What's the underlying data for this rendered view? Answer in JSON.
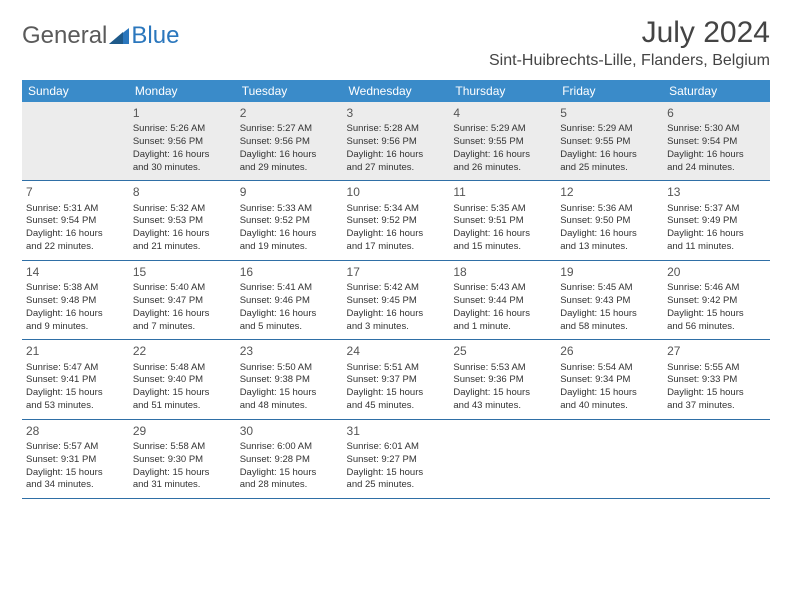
{
  "logo": {
    "general": "General",
    "blue": "Blue"
  },
  "header": {
    "title": "July 2024",
    "location": "Sint-Huibrechts-Lille, Flanders, Belgium"
  },
  "colors": {
    "header_bg": "#3a8bc9",
    "header_text": "#ffffff",
    "row_divider": "#2f6fa6",
    "first_row_bg": "#ececec",
    "text": "#333333",
    "logo_general": "#5a5a5a",
    "logo_blue": "#2b77bd"
  },
  "weekdays": [
    "Sunday",
    "Monday",
    "Tuesday",
    "Wednesday",
    "Thursday",
    "Friday",
    "Saturday"
  ],
  "weeks": [
    [
      null,
      {
        "n": "1",
        "sr": "Sunrise: 5:26 AM",
        "ss": "Sunset: 9:56 PM",
        "d1": "Daylight: 16 hours",
        "d2": "and 30 minutes."
      },
      {
        "n": "2",
        "sr": "Sunrise: 5:27 AM",
        "ss": "Sunset: 9:56 PM",
        "d1": "Daylight: 16 hours",
        "d2": "and 29 minutes."
      },
      {
        "n": "3",
        "sr": "Sunrise: 5:28 AM",
        "ss": "Sunset: 9:56 PM",
        "d1": "Daylight: 16 hours",
        "d2": "and 27 minutes."
      },
      {
        "n": "4",
        "sr": "Sunrise: 5:29 AM",
        "ss": "Sunset: 9:55 PM",
        "d1": "Daylight: 16 hours",
        "d2": "and 26 minutes."
      },
      {
        "n": "5",
        "sr": "Sunrise: 5:29 AM",
        "ss": "Sunset: 9:55 PM",
        "d1": "Daylight: 16 hours",
        "d2": "and 25 minutes."
      },
      {
        "n": "6",
        "sr": "Sunrise: 5:30 AM",
        "ss": "Sunset: 9:54 PM",
        "d1": "Daylight: 16 hours",
        "d2": "and 24 minutes."
      }
    ],
    [
      {
        "n": "7",
        "sr": "Sunrise: 5:31 AM",
        "ss": "Sunset: 9:54 PM",
        "d1": "Daylight: 16 hours",
        "d2": "and 22 minutes."
      },
      {
        "n": "8",
        "sr": "Sunrise: 5:32 AM",
        "ss": "Sunset: 9:53 PM",
        "d1": "Daylight: 16 hours",
        "d2": "and 21 minutes."
      },
      {
        "n": "9",
        "sr": "Sunrise: 5:33 AM",
        "ss": "Sunset: 9:52 PM",
        "d1": "Daylight: 16 hours",
        "d2": "and 19 minutes."
      },
      {
        "n": "10",
        "sr": "Sunrise: 5:34 AM",
        "ss": "Sunset: 9:52 PM",
        "d1": "Daylight: 16 hours",
        "d2": "and 17 minutes."
      },
      {
        "n": "11",
        "sr": "Sunrise: 5:35 AM",
        "ss": "Sunset: 9:51 PM",
        "d1": "Daylight: 16 hours",
        "d2": "and 15 minutes."
      },
      {
        "n": "12",
        "sr": "Sunrise: 5:36 AM",
        "ss": "Sunset: 9:50 PM",
        "d1": "Daylight: 16 hours",
        "d2": "and 13 minutes."
      },
      {
        "n": "13",
        "sr": "Sunrise: 5:37 AM",
        "ss": "Sunset: 9:49 PM",
        "d1": "Daylight: 16 hours",
        "d2": "and 11 minutes."
      }
    ],
    [
      {
        "n": "14",
        "sr": "Sunrise: 5:38 AM",
        "ss": "Sunset: 9:48 PM",
        "d1": "Daylight: 16 hours",
        "d2": "and 9 minutes."
      },
      {
        "n": "15",
        "sr": "Sunrise: 5:40 AM",
        "ss": "Sunset: 9:47 PM",
        "d1": "Daylight: 16 hours",
        "d2": "and 7 minutes."
      },
      {
        "n": "16",
        "sr": "Sunrise: 5:41 AM",
        "ss": "Sunset: 9:46 PM",
        "d1": "Daylight: 16 hours",
        "d2": "and 5 minutes."
      },
      {
        "n": "17",
        "sr": "Sunrise: 5:42 AM",
        "ss": "Sunset: 9:45 PM",
        "d1": "Daylight: 16 hours",
        "d2": "and 3 minutes."
      },
      {
        "n": "18",
        "sr": "Sunrise: 5:43 AM",
        "ss": "Sunset: 9:44 PM",
        "d1": "Daylight: 16 hours",
        "d2": "and 1 minute."
      },
      {
        "n": "19",
        "sr": "Sunrise: 5:45 AM",
        "ss": "Sunset: 9:43 PM",
        "d1": "Daylight: 15 hours",
        "d2": "and 58 minutes."
      },
      {
        "n": "20",
        "sr": "Sunrise: 5:46 AM",
        "ss": "Sunset: 9:42 PM",
        "d1": "Daylight: 15 hours",
        "d2": "and 56 minutes."
      }
    ],
    [
      {
        "n": "21",
        "sr": "Sunrise: 5:47 AM",
        "ss": "Sunset: 9:41 PM",
        "d1": "Daylight: 15 hours",
        "d2": "and 53 minutes."
      },
      {
        "n": "22",
        "sr": "Sunrise: 5:48 AM",
        "ss": "Sunset: 9:40 PM",
        "d1": "Daylight: 15 hours",
        "d2": "and 51 minutes."
      },
      {
        "n": "23",
        "sr": "Sunrise: 5:50 AM",
        "ss": "Sunset: 9:38 PM",
        "d1": "Daylight: 15 hours",
        "d2": "and 48 minutes."
      },
      {
        "n": "24",
        "sr": "Sunrise: 5:51 AM",
        "ss": "Sunset: 9:37 PM",
        "d1": "Daylight: 15 hours",
        "d2": "and 45 minutes."
      },
      {
        "n": "25",
        "sr": "Sunrise: 5:53 AM",
        "ss": "Sunset: 9:36 PM",
        "d1": "Daylight: 15 hours",
        "d2": "and 43 minutes."
      },
      {
        "n": "26",
        "sr": "Sunrise: 5:54 AM",
        "ss": "Sunset: 9:34 PM",
        "d1": "Daylight: 15 hours",
        "d2": "and 40 minutes."
      },
      {
        "n": "27",
        "sr": "Sunrise: 5:55 AM",
        "ss": "Sunset: 9:33 PM",
        "d1": "Daylight: 15 hours",
        "d2": "and 37 minutes."
      }
    ],
    [
      {
        "n": "28",
        "sr": "Sunrise: 5:57 AM",
        "ss": "Sunset: 9:31 PM",
        "d1": "Daylight: 15 hours",
        "d2": "and 34 minutes."
      },
      {
        "n": "29",
        "sr": "Sunrise: 5:58 AM",
        "ss": "Sunset: 9:30 PM",
        "d1": "Daylight: 15 hours",
        "d2": "and 31 minutes."
      },
      {
        "n": "30",
        "sr": "Sunrise: 6:00 AM",
        "ss": "Sunset: 9:28 PM",
        "d1": "Daylight: 15 hours",
        "d2": "and 28 minutes."
      },
      {
        "n": "31",
        "sr": "Sunrise: 6:01 AM",
        "ss": "Sunset: 9:27 PM",
        "d1": "Daylight: 15 hours",
        "d2": "and 25 minutes."
      },
      null,
      null,
      null
    ]
  ]
}
